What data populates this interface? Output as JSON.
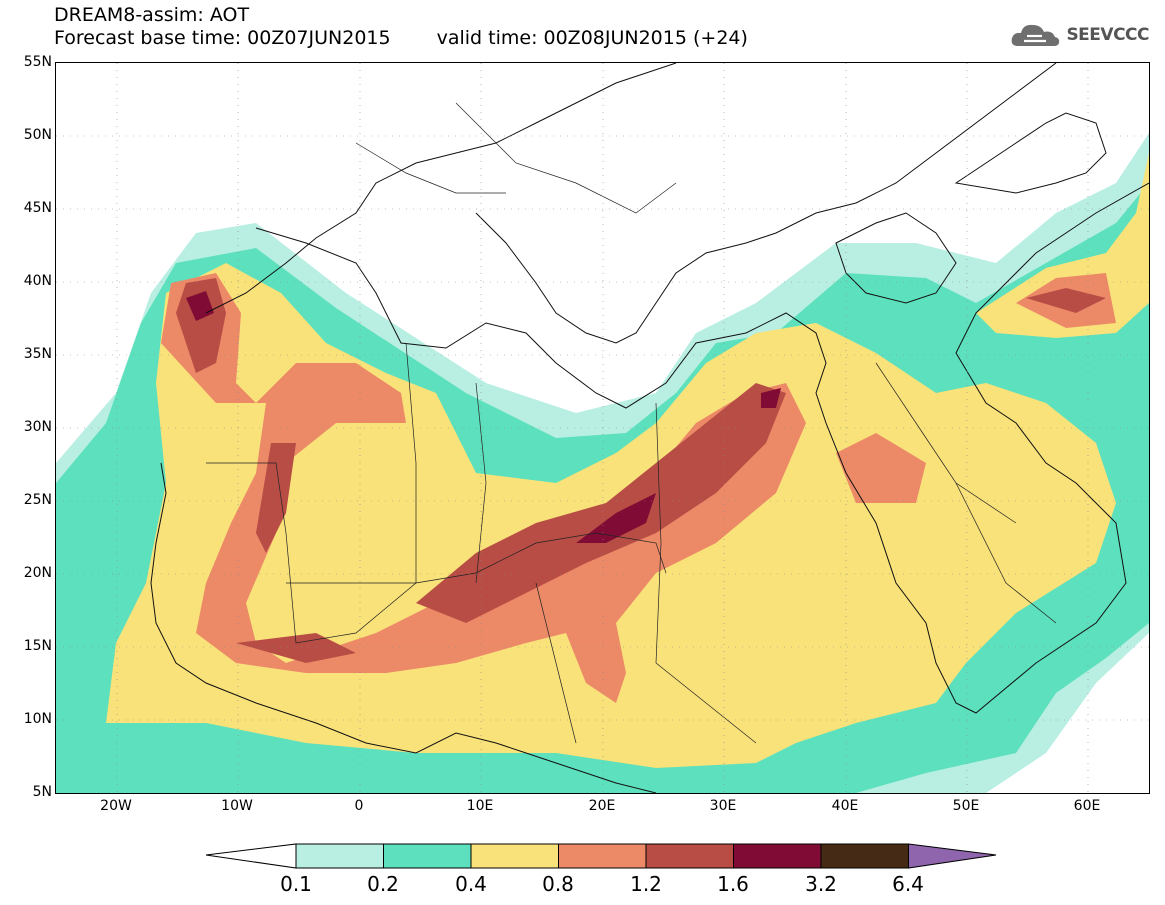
{
  "title": {
    "line1": "DREAM8-assim: AOT",
    "base_time": "Forecast base time: 00Z07JUN2015",
    "valid_time": "valid time: 00Z08JUN2015 (+24)"
  },
  "logo": {
    "icon": "cloud-logo-icon",
    "text": "SEEVCCC"
  },
  "map": {
    "lat_labels": [
      "55N",
      "50N",
      "45N",
      "40N",
      "35N",
      "30N",
      "25N",
      "20N",
      "15N",
      "10N",
      "5N"
    ],
    "lon_labels": [
      "20W",
      "10W",
      "0",
      "10E",
      "20E",
      "30E",
      "40E",
      "50E",
      "60E"
    ],
    "extent": {
      "lon": [
        -25,
        65
      ],
      "lat": [
        5,
        55
      ]
    }
  },
  "colorbar": {
    "labels": [
      "0.1",
      "0.2",
      "0.4",
      "0.8",
      "1.2",
      "1.6",
      "3.2",
      "6.4"
    ],
    "colors": [
      "#ffffff",
      "#b9efe2",
      "#5de0bd",
      "#f9e27a",
      "#ec8a67",
      "#b84d45",
      "#800b35",
      "#452b16",
      "#8f66ad"
    ]
  }
}
